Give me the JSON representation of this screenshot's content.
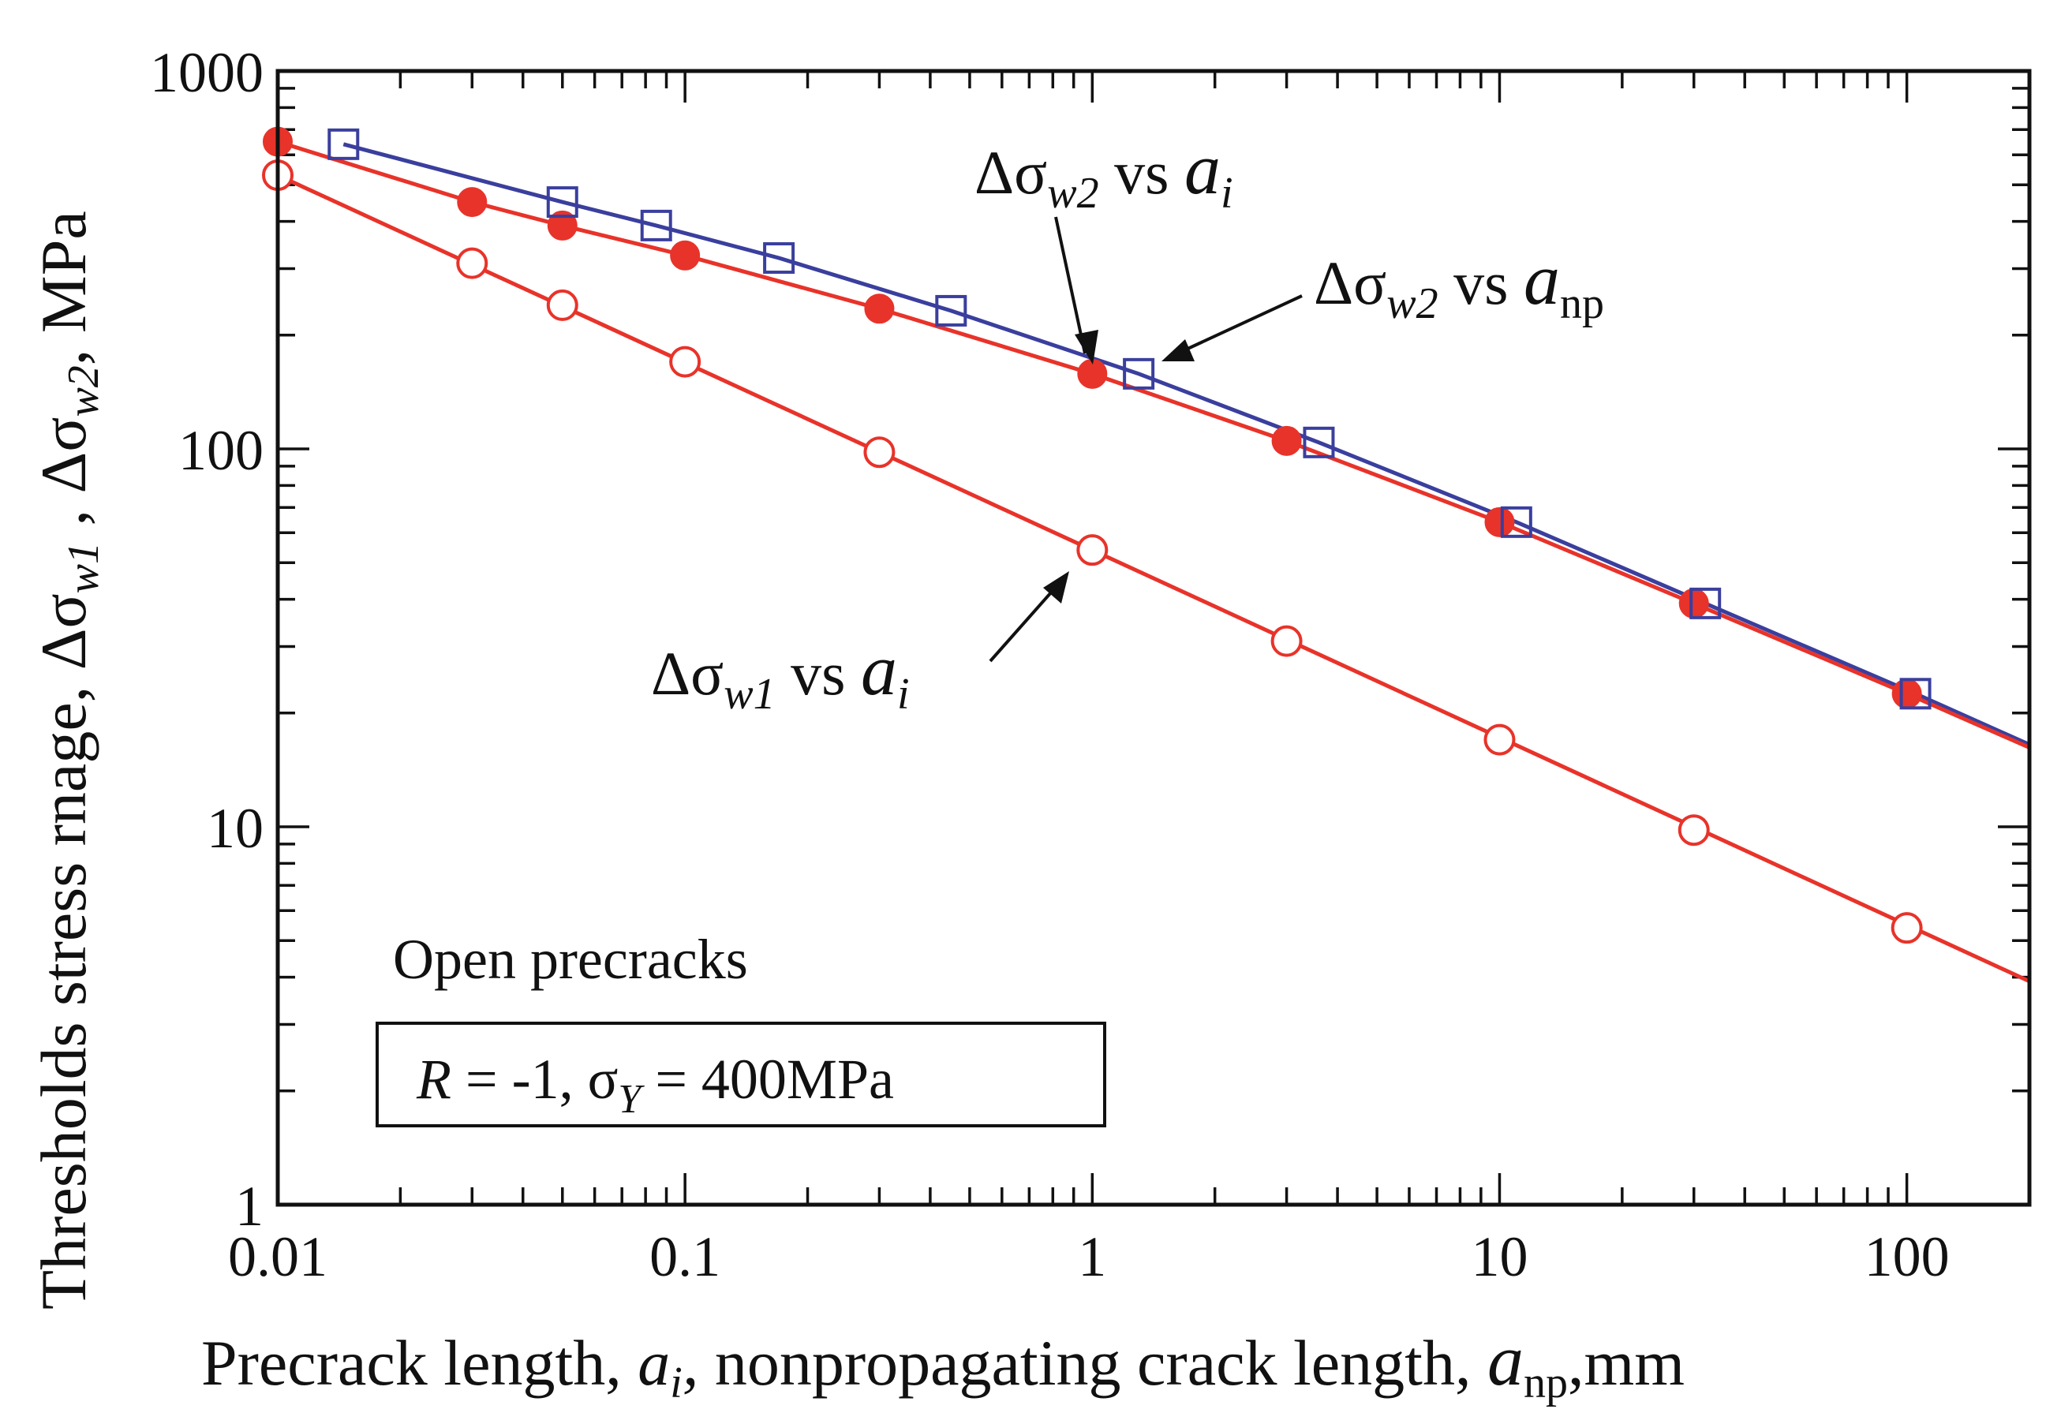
{
  "chart_data": {
    "type": "scatter",
    "xscale": "log",
    "yscale": "log",
    "xlim": [
      0.01,
      200
    ],
    "ylim": [
      1,
      1000
    ],
    "xticks": [
      0.01,
      0.1,
      1,
      10,
      100
    ],
    "xtick_labels": [
      "0.01",
      "0.1",
      "1",
      "10",
      "100"
    ],
    "yticks": [
      1,
      10,
      100,
      1000
    ],
    "ytick_labels": [
      "1",
      "10",
      "100",
      "1000"
    ],
    "xlabel": {
      "part1": "Precrack length, ",
      "a1": "a",
      "sub1": "i",
      "comma1": ",",
      "part2": "  nonpropagating crack length, ",
      "a2": "a",
      "sub2": "np",
      "part3": ",mm"
    },
    "ylabel": {
      "part1": "Thresholds stress rnage, Δσ",
      "sub1": "w1",
      "part2": " , Δσ",
      "sub2": "w2",
      "part3": ", MPa"
    },
    "series": [
      {
        "name": "Δσw1 vs ai",
        "marker": "open-circle",
        "color": "#e8332a",
        "x": [
          0.01,
          0.03,
          0.05,
          0.1,
          0.3,
          1,
          3,
          10,
          30,
          100
        ],
        "y": [
          530,
          310,
          240,
          170,
          98,
          54,
          31,
          17,
          9.8,
          5.4
        ],
        "fit": {
          "x": [
            0.01,
            200
          ],
          "y": [
            530,
            3.9
          ]
        }
      },
      {
        "name": "Δσw2 vs ai",
        "marker": "filled-circle",
        "color": "#e8332a",
        "x": [
          0.01,
          0.03,
          0.05,
          0.1,
          0.3,
          1,
          3,
          10,
          30,
          100
        ],
        "y": [
          650,
          450,
          390,
          325,
          235,
          158,
          105,
          64,
          39,
          22.5
        ],
        "fit": {
          "x": [
            0.01,
            0.03,
            0.05,
            0.1,
            0.3,
            1,
            3,
            10,
            30,
            100,
            200
          ],
          "y": [
            650,
            450,
            390,
            325,
            235,
            158,
            105,
            64,
            39,
            22.5,
            16.2
          ]
        }
      },
      {
        "name": "Δσw2 vs anp",
        "marker": "open-square",
        "color": "#3a3f9e",
        "x": [
          0.0145,
          0.05,
          0.085,
          0.17,
          0.45,
          1.3,
          3.6,
          11,
          32,
          105
        ],
        "y": [
          640,
          450,
          390,
          320,
          232,
          158,
          104,
          64,
          39,
          22.5
        ],
        "fit": {
          "x": [
            0.0145,
            0.05,
            0.085,
            0.17,
            0.45,
            1.3,
            3.6,
            11,
            32,
            105,
            200
          ],
          "y": [
            640,
            450,
            390,
            320,
            232,
            158,
            104,
            64,
            39,
            22.5,
            16.5
          ]
        }
      }
    ],
    "annotations": [
      {
        "id": "w2-ai",
        "delta": "Δσ",
        "sub": "w2",
        "vs": " vs ",
        "var": "a",
        "var_sub": "i",
        "points_to": {
          "x": 1,
          "y": 158
        }
      },
      {
        "id": "w2-anp",
        "delta": "Δσ",
        "sub": "w2",
        "vs": " vs ",
        "var": "a",
        "var_sub": "np",
        "points_to": {
          "x": 1.3,
          "y": 158
        }
      },
      {
        "id": "w1-ai",
        "delta": "Δσ",
        "sub": "w1",
        "vs": " vs ",
        "var": "a",
        "var_sub": "i",
        "points_to": {
          "x": 1,
          "y": 54
        }
      }
    ],
    "notes": {
      "condition": "Open  precracks",
      "box": {
        "r_var": "R",
        "r_value": " = -1,   σ",
        "y_sub": "Y",
        "y_value": " = 400MPa"
      }
    }
  }
}
